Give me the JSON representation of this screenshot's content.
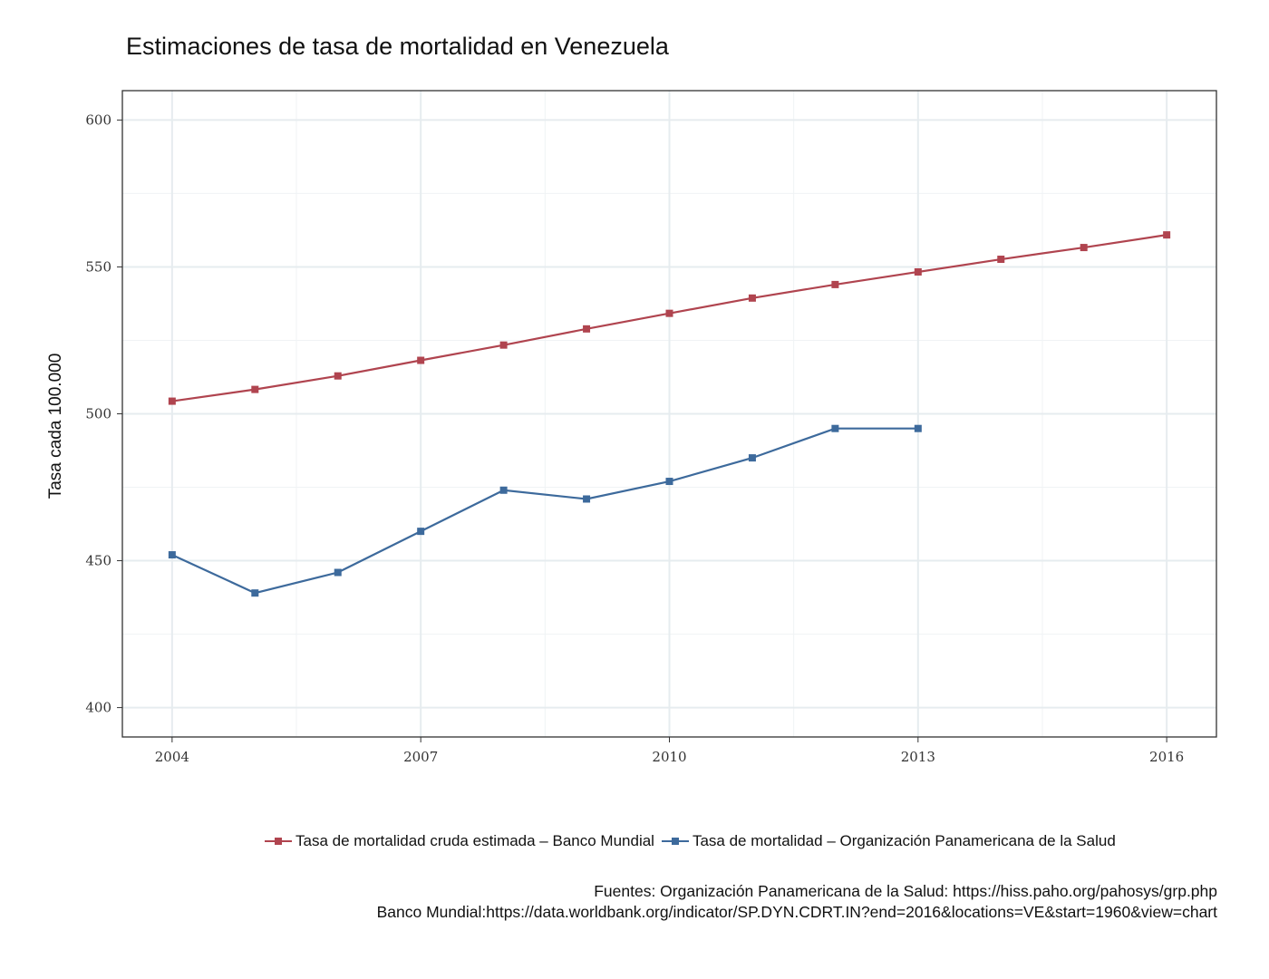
{
  "chart_data": {
    "type": "line",
    "title": "Estimaciones de tasa de mortalidad en Venezuela",
    "xlabel": "",
    "ylabel": "Tasa cada 100.000",
    "xlim": [
      2003.4,
      2016.6
    ],
    "ylim": [
      390,
      610
    ],
    "x_ticks": [
      2004,
      2007,
      2010,
      2013,
      2016
    ],
    "y_ticks": [
      400,
      450,
      500,
      550,
      600
    ],
    "grid": true,
    "legend_position": "bottom",
    "series": [
      {
        "name": "Tasa de mortalidad cruda estimada – Banco Mundial",
        "color": "#b0444f",
        "x": [
          2004,
          2005,
          2006,
          2007,
          2008,
          2009,
          2010,
          2011,
          2012,
          2013,
          2014,
          2015,
          2016
        ],
        "values": [
          504.3,
          508.3,
          512.9,
          518.2,
          523.4,
          528.9,
          534.2,
          539.4,
          544.0,
          548.3,
          552.6,
          556.6,
          560.9
        ]
      },
      {
        "name": "Tasa de mortalidad – Organización Panamericana de la Salud",
        "color": "#3d6a9c",
        "x": [
          2004,
          2005,
          2006,
          2007,
          2008,
          2009,
          2010,
          2011,
          2012,
          2013
        ],
        "values": [
          452,
          439,
          446,
          460,
          474,
          471,
          477,
          485,
          495,
          495
        ]
      }
    ],
    "caption_lines": [
      "Fuentes: Organización Panamericana de la Salud: https://hiss.paho.org/pahosys/grp.php",
      "Banco Mundial:https://data.worldbank.org/indicator/SP.DYN.CDRT.IN?end=2016&locations=VE&start=1960&view=chart"
    ]
  }
}
